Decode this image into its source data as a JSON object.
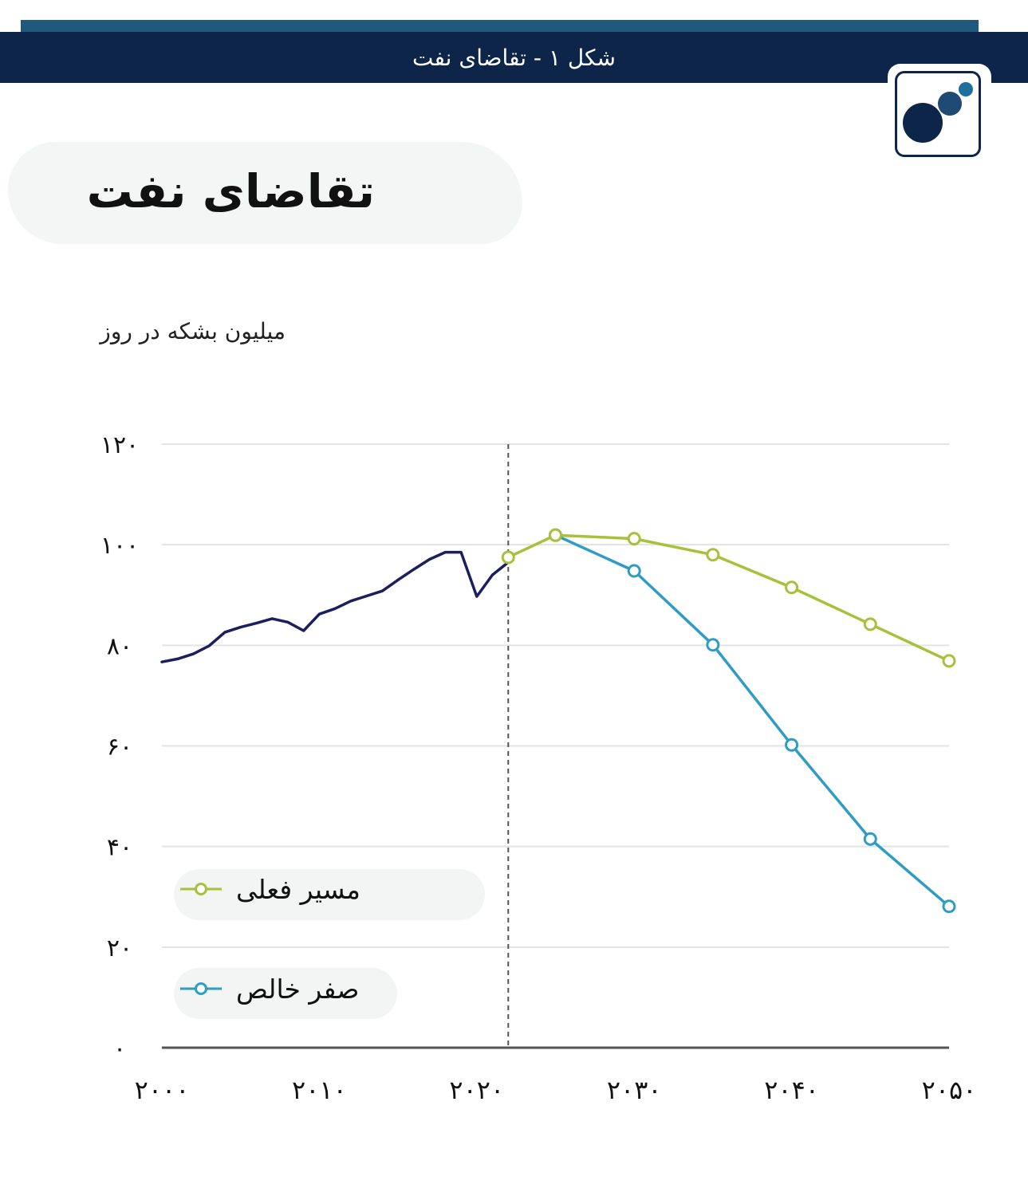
{
  "header": {
    "title": "شکل ۱ - تقاضای نفت"
  },
  "logo": {
    "icon": "bubbles-logo-icon",
    "colors": {
      "frame": "#0c2548",
      "dot_large": "#0c2548",
      "dot_medium": "#1f4a73",
      "dot_small": "#1f6f9e"
    }
  },
  "colors": {
    "header_bg": "#0c2548",
    "accent_strip": "#1f5a7e",
    "historical_line": "#1c1f5e",
    "current_path": "#a7c13a",
    "net_zero": "#2e9cc4",
    "grid": "#e3e3e3",
    "axis": "#555555",
    "divider": "#555555"
  },
  "chart_data": {
    "type": "line",
    "title": "تقاضای نفت",
    "ylabel": "میلیون بشکه در روز",
    "xlabel": "",
    "xlim": [
      2000,
      2050
    ],
    "ylim": [
      0,
      120
    ],
    "y_ticks": [
      0,
      20,
      40,
      60,
      80,
      100,
      120
    ],
    "y_tick_labels": [
      "۰",
      "۲۰",
      "۴۰",
      "۶۰",
      "۸۰",
      "۱۰۰",
      "۱۲۰"
    ],
    "x_ticks": [
      2000,
      2010,
      2020,
      2030,
      2040,
      2050
    ],
    "x_tick_labels": [
      "۲۰۰۰",
      "۲۰۱۰",
      "۲۰۲۰",
      "۲۰۳۰",
      "۲۰۴۰",
      "۲۰۵۰"
    ],
    "grid": "horizontal",
    "legend_position": "bottom-left",
    "divider_year": 2022,
    "series": [
      {
        "key": "historical",
        "x": [
          2000,
          2001,
          2002,
          2003,
          2004,
          2005,
          2006,
          2007,
          2008,
          2009,
          2010,
          2011,
          2012,
          2013,
          2014,
          2015,
          2016,
          2017,
          2018,
          2019,
          2020,
          2021,
          2022
        ],
        "values": [
          76.7,
          77.3,
          78.3,
          79.9,
          82.6,
          83.6,
          84.4,
          85.3,
          84.6,
          82.9,
          86.2,
          87.3,
          88.8,
          89.8,
          90.8,
          93.0,
          95.1,
          97.1,
          98.5,
          98.5,
          89.7,
          94.0,
          96.5
        ],
        "markers": false
      },
      {
        "key": "current",
        "name": "مسیر فعلی",
        "x": [
          2022,
          2025,
          2030,
          2035,
          2040,
          2045,
          2050
        ],
        "values": [
          97.5,
          101.9,
          101.2,
          98.0,
          91.5,
          84.2,
          76.9
        ],
        "markers": true
      },
      {
        "key": "netzero",
        "name": "صفر خالص",
        "x": [
          2025,
          2030,
          2035,
          2040,
          2045,
          2050
        ],
        "values": [
          101.9,
          94.8,
          80.1,
          60.2,
          41.5,
          28.1
        ],
        "markers": true
      }
    ]
  }
}
